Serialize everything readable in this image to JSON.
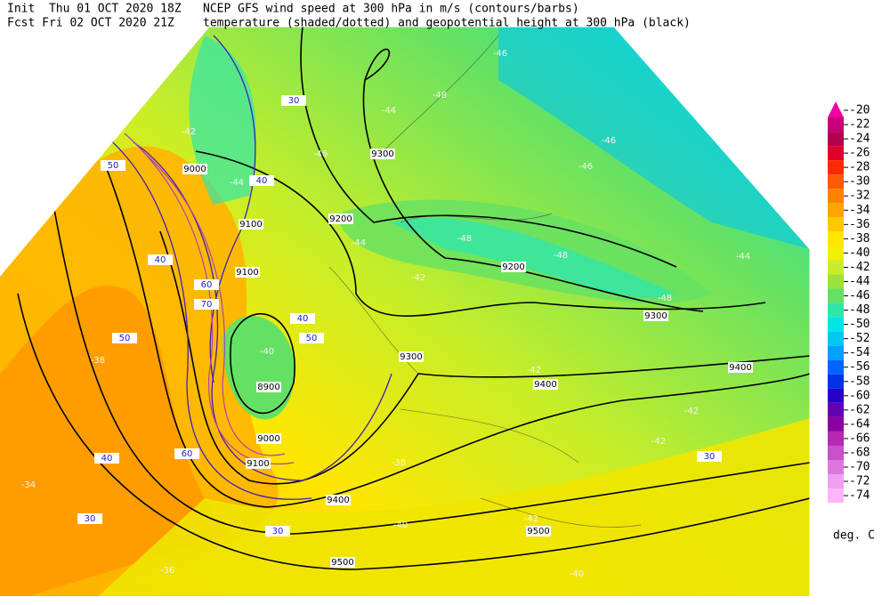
{
  "header": {
    "init": "Init  Thu 01 OCT 2020 18Z",
    "forecast": "Fcst Fri 02 OCT 2020 21Z",
    "title": "NCEP GFS wind speed at 300 hPa in m/s (contours/barbs)",
    "subtitle": "temperature (shaded/dotted) and geopotential height at 300 hPa (black)"
  },
  "colorbar": {
    "levels": [
      -20,
      -22,
      -24,
      -26,
      -28,
      -30,
      -32,
      -34,
      -36,
      -38,
      -40,
      -42,
      -44,
      -46,
      -48,
      -50,
      -52,
      -54,
      -56,
      -58,
      -60,
      -62,
      -64,
      -66,
      -68,
      -70,
      -72,
      -74
    ],
    "colors": [
      "#f000a0",
      "#c8007a",
      "#b4004e",
      "#e0002a",
      "#ff2800",
      "#ff5a00",
      "#ff8200",
      "#ffa500",
      "#ffc800",
      "#ffe600",
      "#f0f000",
      "#c8ee28",
      "#9be23c",
      "#64e164",
      "#32e6aa",
      "#00e6e6",
      "#00c8f0",
      "#00a0ff",
      "#0064ff",
      "#0032e6",
      "#2800c8",
      "#6400b4",
      "#8c00a0",
      "#b428b4",
      "#c850c8",
      "#dc78dc",
      "#f0a0f0",
      "#ffb4ff"
    ],
    "units": "deg. C"
  },
  "map": {
    "height_labels": [
      9200,
      9200,
      9300,
      9400,
      9400,
      9500,
      9500,
      9400,
      9000,
      8900,
      9100,
      9300,
      9300,
      9000,
      9100,
      9100
    ],
    "wind_labels": [
      30,
      40,
      40,
      50,
      30,
      40,
      30,
      60,
      50,
      30,
      40,
      50,
      60,
      70
    ],
    "temperature_labels": [
      -44,
      -46,
      -46,
      -44,
      -42,
      -48,
      -48,
      -48,
      -44,
      -42,
      -42,
      -42,
      -40,
      -34,
      -36,
      -38,
      -42,
      -40,
      -40,
      -46,
      -48,
      -46,
      -42,
      -44,
      -38
    ]
  }
}
